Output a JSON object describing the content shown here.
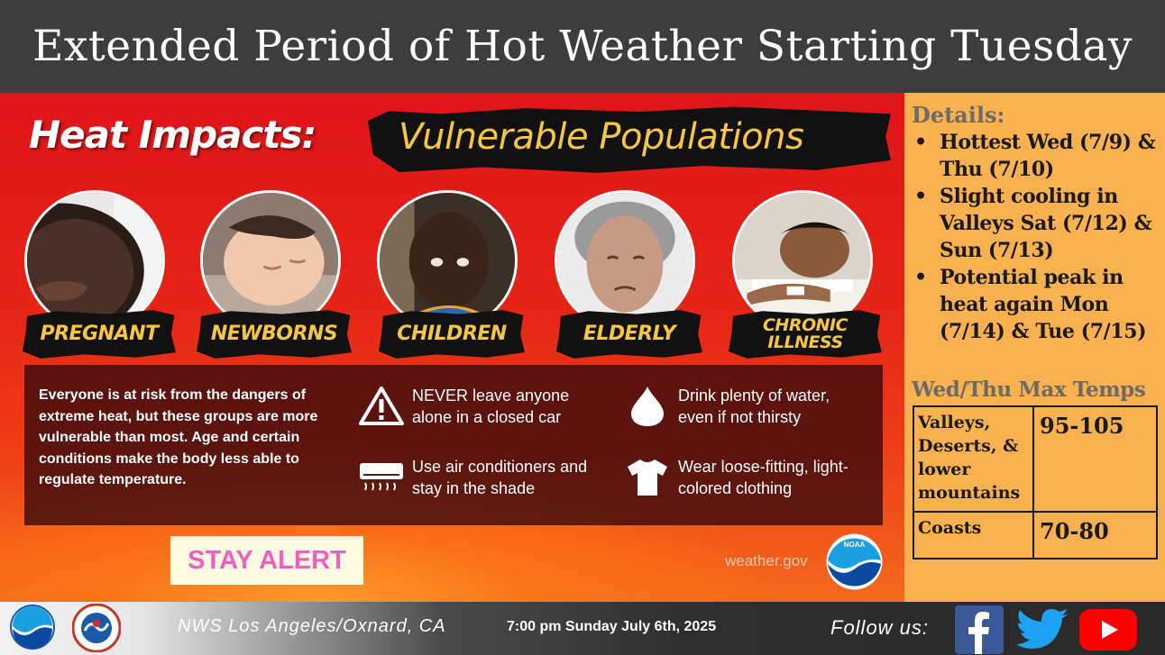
{
  "header": {
    "title": "Extended Period of Hot Weather Starting Tuesday"
  },
  "graphic": {
    "headline_left": "Heat Impacts:",
    "headline_right": "Vulnerable Populations",
    "populations": [
      "PREGNANT",
      "NEWBORNS",
      "CHILDREN",
      "ELDERLY",
      "CHRONIC ILLNESS"
    ],
    "info_text": "Everyone is at risk from the dangers of extreme heat, but these groups are more vulnerable than most. Age and certain conditions make the body less able to regulate temperature.",
    "tips": [
      {
        "icon": "warning-icon",
        "text": "NEVER leave anyone alone in a closed car"
      },
      {
        "icon": "water-drop-icon",
        "text": "Drink plenty of water, even if not thirsty"
      },
      {
        "icon": "air-conditioner-icon",
        "text": "Use air conditioners and stay in the shade"
      },
      {
        "icon": "shirt-icon",
        "text": "Wear loose-fitting, light-colored clothing"
      }
    ],
    "stay_alert": "STAY ALERT",
    "site": "weather.gov",
    "noaa_text": "NOAA"
  },
  "details": {
    "heading": "Details:",
    "bullets": [
      "Hottest Wed (7/9) & Thu (7/10)",
      "Slight cooling in Valleys Sat (7/12) & Sun (7/13)",
      "Potential peak in heat again Mon (7/14) & Tue (7/15)"
    ],
    "temps_heading": "Wed/Thu Max Temps",
    "temps": [
      {
        "region": "Valleys, Deserts, & lower mountains",
        "range": "95-105"
      },
      {
        "region": "Coasts",
        "range": "70-80"
      }
    ]
  },
  "footer": {
    "office": "NWS Los Angeles/Oxnard, CA",
    "timestamp": "7:00 pm Sunday July 6th, 2025",
    "follow": "Follow us:",
    "social": [
      "facebook-icon",
      "twitter-icon",
      "youtube-icon"
    ]
  },
  "colors": {
    "title_bar": "#3d3d3d",
    "graphic_red": "#e0141a",
    "label_yellow": "#f6c542",
    "details_orange": "#f9b04f",
    "stay_alert_pink": "#f060c0"
  }
}
